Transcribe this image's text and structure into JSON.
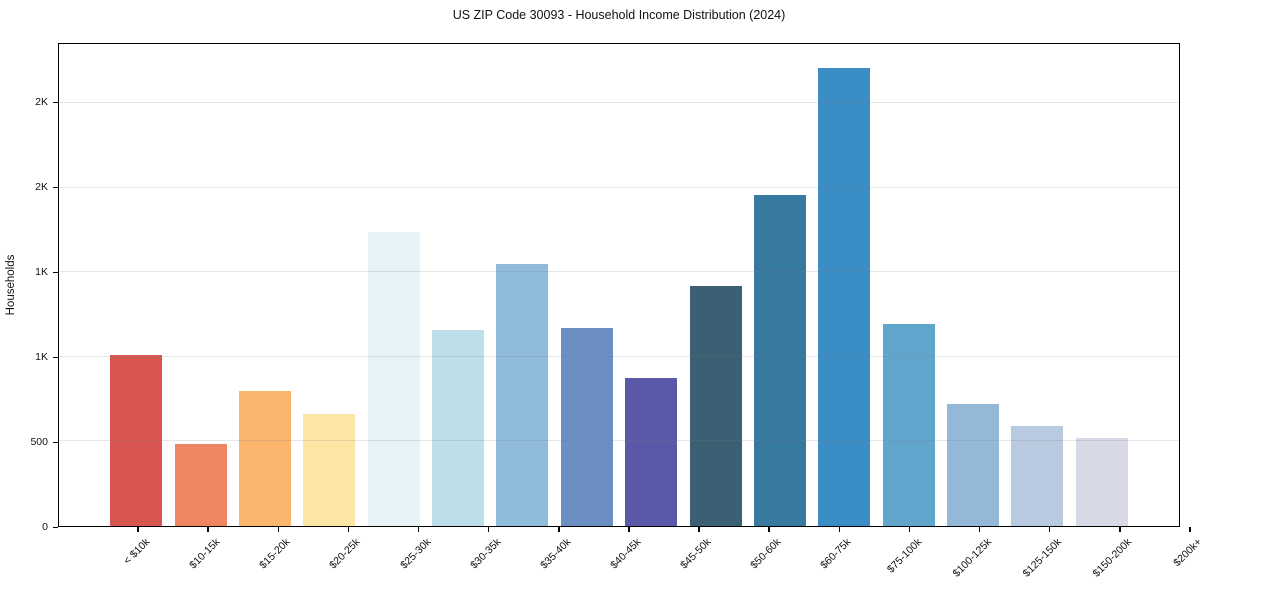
{
  "chart_data": {
    "type": "bar",
    "title": "US ZIP Code 30093 - Household Income Distribution (2024)",
    "xlabel": "",
    "ylabel": "Households",
    "categories": [
      "< $10k",
      "$10-15k",
      "$15-20k",
      "$20-25k",
      "$25-30k",
      "$30-35k",
      "$35-40k",
      "$40-45k",
      "$45-50k",
      "$50-60k",
      "$60-75k",
      "$75-100k",
      "$100-125k",
      "$125-150k",
      "$150-200k",
      "$200k+"
    ],
    "values": [
      1010,
      485,
      800,
      660,
      1740,
      1160,
      1550,
      1170,
      875,
      1420,
      1960,
      2710,
      1195,
      720,
      590,
      520
    ],
    "bar_colors": [
      "#d7564f",
      "#f08561",
      "#fbb56f",
      "#fde5a3",
      "#e6f2f6",
      "#bcdfea",
      "#8ebcda",
      "#6b8ec3",
      "#5a58a8",
      "#3b6073",
      "#38799f",
      "#3a8dc5",
      "#60a5cc",
      "#94b8d8",
      "#b9c9e0",
      "#d7d9e6"
    ],
    "ylim": [
      0,
      2850
    ],
    "yticks": [
      {
        "value": 0,
        "label": "0"
      },
      {
        "value": 500,
        "label": "500"
      },
      {
        "value": 1000,
        "label": "1K"
      },
      {
        "value": 1500,
        "label": "1K"
      },
      {
        "value": 2000,
        "label": "2K"
      },
      {
        "value": 2500,
        "label": "2K"
      }
    ],
    "grid": "horizontal gridlines on, vertical off",
    "legend": "none"
  },
  "style": {
    "grid_color_rgba": "rgba(125,125,125,0.2)",
    "spine_color": "#000000",
    "text_color": "#111111",
    "background": "#ffffff"
  }
}
